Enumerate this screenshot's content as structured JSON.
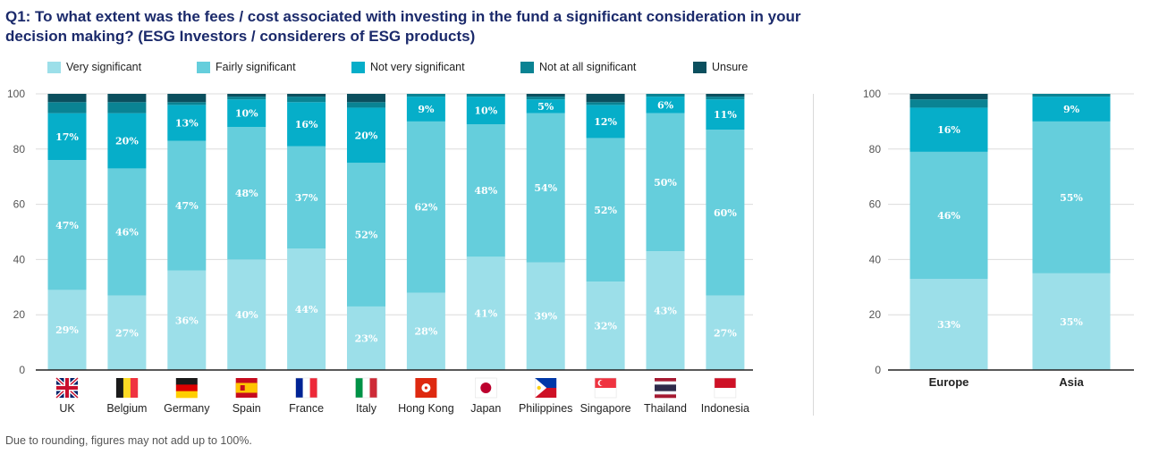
{
  "title": "Q1: To what extent was the fees / cost associated with investing in the fund a significant consideration in your decision making? (ESG Investors / considerers of ESG products)",
  "footnote": "Due to rounding, figures may not add up to 100%.",
  "legend": [
    {
      "label": "Very significant",
      "color": "#9cdfe9"
    },
    {
      "label": "Fairly significant",
      "color": "#65cedc"
    },
    {
      "label": "Not very significant",
      "color": "#06aec9"
    },
    {
      "label": "Not at all significant",
      "color": "#0a8393"
    },
    {
      "label": "Unsure",
      "color": "#0b4f5e"
    }
  ],
  "chart_data": [
    {
      "type": "bar",
      "stacked": true,
      "title": "",
      "xlabel": "",
      "ylabel": "",
      "ylim": [
        0,
        100
      ],
      "yticks": [
        0,
        20,
        40,
        60,
        80,
        100
      ],
      "grid": true,
      "categories": [
        "UK",
        "Belgium",
        "Germany",
        "Spain",
        "France",
        "Italy",
        "Hong Kong",
        "Japan",
        "Philippines",
        "Singapore",
        "Thailand",
        "Indonesia"
      ],
      "flag_icons": [
        "uk-flag-icon",
        "belgium-flag-icon",
        "germany-flag-icon",
        "spain-flag-icon",
        "france-flag-icon",
        "italy-flag-icon",
        "hong-kong-flag-icon",
        "japan-flag-icon",
        "philippines-flag-icon",
        "singapore-flag-icon",
        "thailand-flag-icon",
        "indonesia-flag-icon"
      ],
      "series": [
        {
          "name": "Very significant",
          "values": [
            29,
            27,
            36,
            40,
            44,
            23,
            28,
            41,
            39,
            32,
            43,
            27
          ],
          "labels": [
            "29%",
            "27%",
            "36%",
            "40%",
            "44%",
            "23%",
            "28%",
            "41%",
            "39%",
            "32%",
            "43%",
            "27%"
          ]
        },
        {
          "name": "Fairly significant",
          "values": [
            47,
            46,
            47,
            48,
            37,
            52,
            62,
            48,
            54,
            52,
            50,
            60
          ],
          "labels": [
            "47%",
            "46%",
            "47%",
            "48%",
            "37%",
            "52%",
            "62%",
            "48%",
            "54%",
            "52%",
            "50%",
            "60%"
          ]
        },
        {
          "name": "Not very significant",
          "values": [
            17,
            20,
            13,
            10,
            16,
            20,
            9,
            10,
            5,
            12,
            6,
            11
          ],
          "labels": [
            "17%",
            "20%",
            "13%",
            "10%",
            "16%",
            "20%",
            "9%",
            "10%",
            "5%",
            "12%",
            "6%",
            "11%"
          ]
        },
        {
          "name": "Not at all significant",
          "values": [
            4,
            4,
            1,
            1,
            2,
            2,
            1,
            1,
            1,
            1,
            1,
            1
          ],
          "labels": [
            "",
            "",
            "",
            "",
            "",
            "",
            "",
            "",
            "",
            "",
            "",
            ""
          ]
        },
        {
          "name": "Unsure",
          "values": [
            3,
            3,
            3,
            1,
            1,
            3,
            0,
            0,
            1,
            3,
            0,
            1
          ],
          "labels": [
            "",
            "",
            "",
            "",
            "",
            "",
            "",
            "",
            "",
            "",
            "",
            ""
          ]
        }
      ]
    },
    {
      "type": "bar",
      "stacked": true,
      "title": "",
      "xlabel": "",
      "ylabel": "",
      "ylim": [
        0,
        100
      ],
      "yticks": [
        0,
        20,
        40,
        60,
        80,
        100
      ],
      "grid": true,
      "categories": [
        "Europe",
        "Asia"
      ],
      "series": [
        {
          "name": "Very significant",
          "values": [
            33,
            35
          ],
          "labels": [
            "33%",
            "35%"
          ]
        },
        {
          "name": "Fairly significant",
          "values": [
            46,
            55
          ],
          "labels": [
            "46%",
            "55%"
          ]
        },
        {
          "name": "Not very significant",
          "values": [
            16,
            9
          ],
          "labels": [
            "16%",
            "9%"
          ]
        },
        {
          "name": "Not at all significant",
          "values": [
            3,
            1
          ],
          "labels": [
            "",
            ""
          ]
        },
        {
          "name": "Unsure",
          "values": [
            2,
            0
          ],
          "labels": [
            "",
            ""
          ]
        }
      ]
    }
  ]
}
